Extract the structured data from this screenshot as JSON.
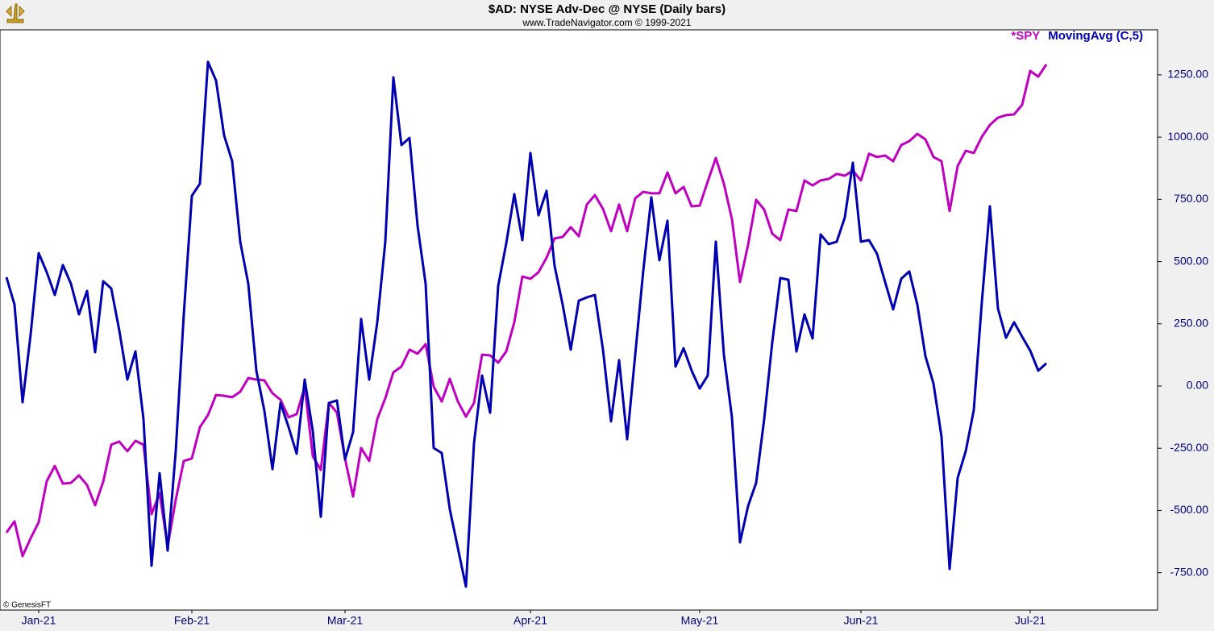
{
  "chart_data": {
    "type": "line",
    "title": "$AD:  NYSE Adv-Dec @ NYSE  (Daily bars)",
    "subtitle": "www.TradeNavigator.com © 1999-2021",
    "watermark": "© GenesisFT",
    "categories": [
      null,
      null,
      null,
      null,
      "Jan-21",
      null,
      null,
      null,
      null,
      null,
      null,
      null,
      null,
      null,
      null,
      null,
      null,
      null,
      null,
      null,
      null,
      null,
      null,
      "Feb-21",
      null,
      null,
      null,
      null,
      null,
      null,
      null,
      null,
      null,
      null,
      null,
      null,
      null,
      null,
      null,
      null,
      null,
      null,
      "Mar-21",
      null,
      null,
      null,
      null,
      null,
      null,
      null,
      null,
      null,
      null,
      null,
      null,
      null,
      null,
      null,
      null,
      null,
      null,
      null,
      null,
      null,
      null,
      "Apr-21",
      null,
      null,
      null,
      null,
      null,
      null,
      null,
      null,
      null,
      null,
      null,
      null,
      null,
      null,
      null,
      null,
      null,
      null,
      null,
      null,
      "May-21",
      null,
      null,
      null,
      null,
      null,
      null,
      null,
      null,
      null,
      null,
      null,
      null,
      null,
      null,
      null,
      null,
      null,
      null,
      null,
      "Jun-21",
      null,
      null,
      null,
      null,
      null,
      null,
      null,
      null,
      null,
      null,
      null,
      null,
      null,
      null,
      null,
      null,
      null,
      null,
      null,
      null,
      "Jul-21",
      null,
      null
    ],
    "series": [
      {
        "name": "*SPY",
        "color": "#c000c0",
        "values": [
          -589,
          -544,
          -683,
          -612,
          -547,
          -382,
          -321,
          -392,
          -389,
          -359,
          -398,
          -479,
          -385,
          -236,
          -223,
          -262,
          -220,
          -236,
          -515,
          -431,
          -644,
          -457,
          -301,
          -291,
          -165,
          -117,
          -36,
          -39,
          -45,
          -23,
          32,
          26,
          23,
          -29,
          -55,
          -126,
          -113,
          -3,
          -282,
          -337,
          -68,
          -107,
          -291,
          -444,
          -249,
          -301,
          -133,
          -49,
          55,
          78,
          146,
          130,
          168,
          -3,
          -62,
          29,
          -62,
          -123,
          -68,
          126,
          123,
          94,
          139,
          256,
          440,
          431,
          457,
          515,
          593,
          599,
          638,
          602,
          729,
          767,
          712,
          622,
          729,
          622,
          754,
          780,
          774,
          774,
          858,
          774,
          800,
          722,
          725,
          822,
          916,
          813,
          670,
          418,
          567,
          748,
          709,
          612,
          586,
          709,
          703,
          826,
          806,
          826,
          832,
          852,
          845,
          865,
          826,
          933,
          920,
          926,
          903,
          968,
          984,
          1013,
          991,
          920,
          903,
          703,
          884,
          945,
          936,
          1001,
          1049,
          1078,
          1088,
          1091,
          1130,
          1266,
          1243,
          1292
        ]
      },
      {
        "name": "MovingAvg (C,5)",
        "color": "#0000b0",
        "values": [
          437,
          327,
          -65,
          207,
          534,
          457,
          366,
          486,
          411,
          288,
          382,
          136,
          421,
          392,
          223,
          26,
          139,
          -133,
          -722,
          -350,
          -661,
          -262,
          288,
          764,
          813,
          1302,
          1227,
          1007,
          903,
          580,
          411,
          62,
          -100,
          -334,
          -68,
          -165,
          -272,
          26,
          -181,
          -525,
          -68,
          -58,
          -295,
          -185,
          269,
          26,
          256,
          580,
          1240,
          968,
          997,
          644,
          411,
          -249,
          -269,
          -495,
          -651,
          -806,
          -230,
          42,
          -107,
          402,
          573,
          771,
          586,
          936,
          686,
          784,
          482,
          327,
          146,
          343,
          356,
          366,
          146,
          -142,
          104,
          -214,
          126,
          463,
          758,
          505,
          664,
          78,
          152,
          62,
          -10,
          42,
          580,
          126,
          -126,
          -628,
          -482,
          -389,
          -133,
          175,
          434,
          427,
          139,
          288,
          191,
          609,
          570,
          580,
          677,
          897,
          580,
          586,
          531,
          418,
          308,
          431,
          460,
          327,
          120,
          10,
          -204,
          -735,
          -369,
          -262,
          -97,
          337,
          722,
          311,
          194,
          256,
          198,
          142,
          62,
          91
        ]
      }
    ],
    "ylim": [
      -900,
      1431
    ],
    "yticks": [
      {
        "value": 1250,
        "label": "1250.00"
      },
      {
        "value": 1000,
        "label": "1000.00"
      },
      {
        "value": 750,
        "label": "750.00"
      },
      {
        "value": 500,
        "label": "500.00"
      },
      {
        "value": 250,
        "label": "250.00"
      },
      {
        "value": 0,
        "label": "0.00"
      },
      {
        "value": -250,
        "label": "-250.00"
      },
      {
        "value": -500,
        "label": "-500.00"
      },
      {
        "value": -750,
        "label": "-750.00"
      }
    ],
    "grid": false,
    "legend": "upper right"
  }
}
